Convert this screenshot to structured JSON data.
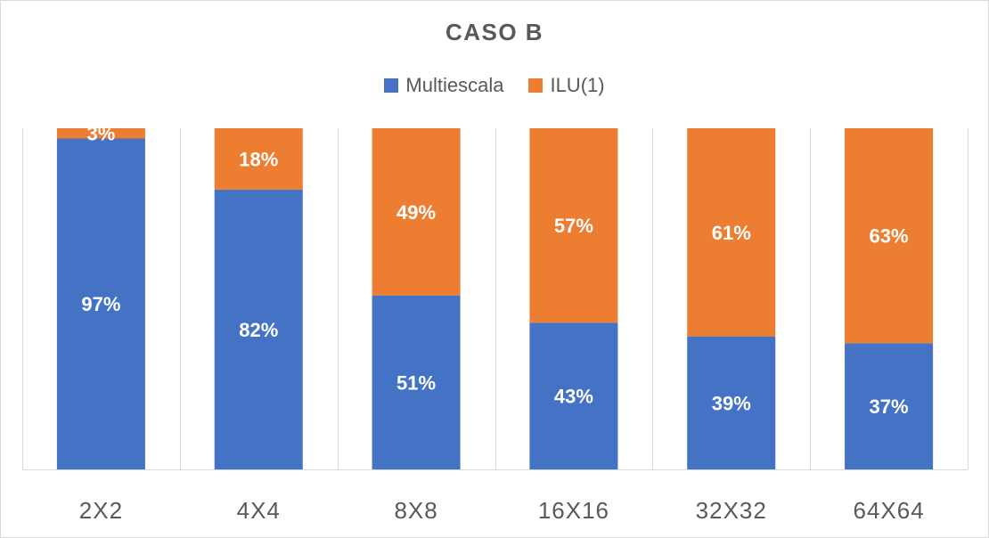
{
  "chart_data": {
    "type": "bar",
    "stacked": true,
    "normalized_percent": true,
    "title": "CASO  B",
    "categories": [
      "2X2",
      "4X4",
      "8X8",
      "16X16",
      "32X32",
      "64X64"
    ],
    "series": [
      {
        "name": "Multiescala",
        "color": "#4472c4",
        "values": [
          97,
          82,
          51,
          43,
          39,
          37
        ],
        "labels": [
          "97%",
          "82%",
          "51%",
          "43%",
          "39%",
          "37%"
        ]
      },
      {
        "name": "ILU(1)",
        "color": "#ed7d31",
        "values": [
          3,
          18,
          49,
          57,
          61,
          63
        ],
        "labels": [
          "3%",
          "18%",
          "49%",
          "57%",
          "61%",
          "63%"
        ]
      }
    ],
    "ylim": [
      0,
      100
    ],
    "grid": "vertical",
    "legend_position": "top"
  }
}
